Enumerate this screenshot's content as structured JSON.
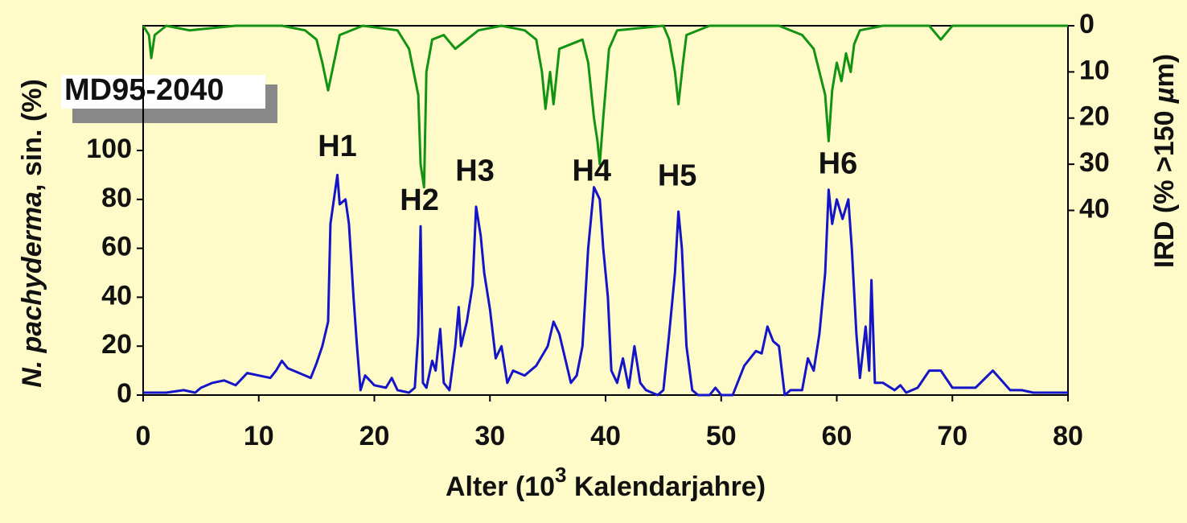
{
  "chart_data": {
    "type": "line",
    "box_label": "MD95-2040",
    "xlabel_parts": [
      {
        "text": "Alter (10"
      },
      {
        "text": "3",
        "sup": true
      },
      {
        "text": " Kalendarjahre)"
      }
    ],
    "ylabel_parts": [
      {
        "text": "N. pachyderma",
        "italic": true
      },
      {
        "text": ", sin. (%)"
      }
    ],
    "y2label_parts": [
      {
        "text": "IRD (% >150 "
      },
      {
        "text": "µ",
        "italic": true
      },
      {
        "text": "m)"
      }
    ],
    "xlim": [
      0,
      80
    ],
    "xticks": [
      0,
      10,
      20,
      30,
      40,
      50,
      60,
      70,
      80
    ],
    "ylim": [
      0,
      151
    ],
    "yticks": [
      0,
      20,
      40,
      60,
      80,
      100
    ],
    "y2lim": [
      80,
      0
    ],
    "y2ticks": [
      0,
      10,
      20,
      30,
      40
    ],
    "series": [
      {
        "name": "N. pachyderma",
        "color": "#1414c8",
        "axis": "y",
        "x": [
          0,
          2,
          3.5,
          4.5,
          5,
          6,
          7,
          8,
          9,
          10,
          11,
          11.5,
          12,
          12.5,
          13.5,
          14.5,
          15,
          15.5,
          16,
          16.2,
          16.5,
          16.8,
          17,
          17.5,
          17.8,
          18.2,
          18.5,
          18.8,
          19.2,
          20,
          21,
          21.5,
          22,
          23,
          23.5,
          23.8,
          24,
          24.2,
          24.5,
          25,
          25.3,
          25.7,
          26,
          26.5,
          27,
          27.3,
          27.5,
          28,
          28.5,
          28.8,
          29.2,
          29.5,
          30,
          30.5,
          31,
          31.5,
          32,
          33,
          34,
          35,
          35.5,
          36,
          36.5,
          37,
          37.5,
          38,
          38.5,
          39,
          39.5,
          39.8,
          40.2,
          40.5,
          41,
          41.5,
          42,
          42.5,
          43,
          43.5,
          44.5,
          45,
          45.5,
          46,
          46.3,
          46.6,
          47,
          47.5,
          48,
          49,
          49.5,
          50,
          51,
          52,
          53,
          53.5,
          54,
          54.5,
          55,
          55.5,
          56,
          57,
          57.5,
          58,
          58.5,
          59,
          59.3,
          59.6,
          60,
          60.5,
          61,
          61.3,
          61.7,
          62,
          62.5,
          62.8,
          63,
          63.3,
          64,
          65,
          65.5,
          66,
          67,
          68,
          69,
          70,
          72,
          73.5,
          75,
          76,
          77,
          80
        ],
        "values": [
          1,
          1,
          2,
          1,
          3,
          5,
          6,
          4,
          9,
          8,
          7,
          10,
          14,
          11,
          9,
          7,
          13,
          20,
          30,
          70,
          80,
          90,
          78,
          80,
          70,
          40,
          20,
          2,
          8,
          4,
          3,
          7,
          2,
          1,
          3,
          25,
          69,
          5,
          3,
          14,
          10,
          27,
          5,
          2,
          20,
          36,
          20,
          30,
          45,
          77,
          65,
          50,
          35,
          15,
          20,
          5,
          10,
          8,
          12,
          20,
          30,
          25,
          15,
          5,
          8,
          20,
          60,
          85,
          80,
          60,
          40,
          10,
          5,
          15,
          3,
          20,
          5,
          2,
          0,
          2,
          25,
          50,
          75,
          60,
          20,
          2,
          0,
          0,
          3,
          0,
          0,
          12,
          18,
          17,
          28,
          22,
          20,
          0,
          2,
          2,
          15,
          10,
          25,
          50,
          84,
          70,
          80,
          72,
          80,
          60,
          25,
          7,
          28,
          10,
          47,
          5,
          5,
          2,
          4,
          1,
          3,
          10,
          10,
          3,
          3,
          10,
          2,
          2,
          1,
          1
        ]
      },
      {
        "name": "IRD",
        "color": "#139313",
        "axis": "y2",
        "x": [
          0,
          0.5,
          0.7,
          1,
          2,
          4,
          8,
          12,
          14,
          15,
          15.5,
          16,
          16.5,
          17,
          19,
          22,
          23,
          23.8,
          24,
          24.3,
          24.5,
          25,
          26,
          27,
          28,
          29,
          31,
          33,
          34,
          34.5,
          34.8,
          35.2,
          35.5,
          36,
          38,
          38.5,
          39,
          39.3,
          39.5,
          39.8,
          40.3,
          41,
          45,
          45.5,
          46,
          46.3,
          46.7,
          47,
          49,
          55,
          57,
          58,
          59,
          59.3,
          59.6,
          60,
          60.4,
          60.8,
          61.2,
          61.5,
          62,
          64,
          68,
          69,
          70,
          80
        ],
        "values": [
          0,
          2,
          7,
          2,
          0,
          1,
          0,
          0,
          1,
          3,
          8,
          14,
          8,
          2,
          0,
          1,
          5,
          15,
          30,
          35,
          10,
          3,
          2,
          5,
          3,
          1,
          0,
          1,
          3,
          10,
          18,
          10,
          17,
          5,
          3,
          8,
          20,
          25,
          30,
          20,
          5,
          1,
          0,
          3,
          10,
          17,
          8,
          2,
          0,
          0,
          2,
          5,
          15,
          25,
          14,
          8,
          12,
          6,
          10,
          4,
          1,
          0,
          0,
          3,
          0,
          0
        ]
      }
    ],
    "annotations": [
      {
        "text": "H1",
        "x": 16.8,
        "y": 101
      },
      {
        "text": "H2",
        "x": 23.9,
        "y": 79
      },
      {
        "text": "H3",
        "x": 28.7,
        "y": 91
      },
      {
        "text": "H4",
        "x": 38.8,
        "y": 91
      },
      {
        "text": "H5",
        "x": 46.2,
        "y": 89
      },
      {
        "text": "H6",
        "x": 60.1,
        "y": 94
      }
    ]
  }
}
